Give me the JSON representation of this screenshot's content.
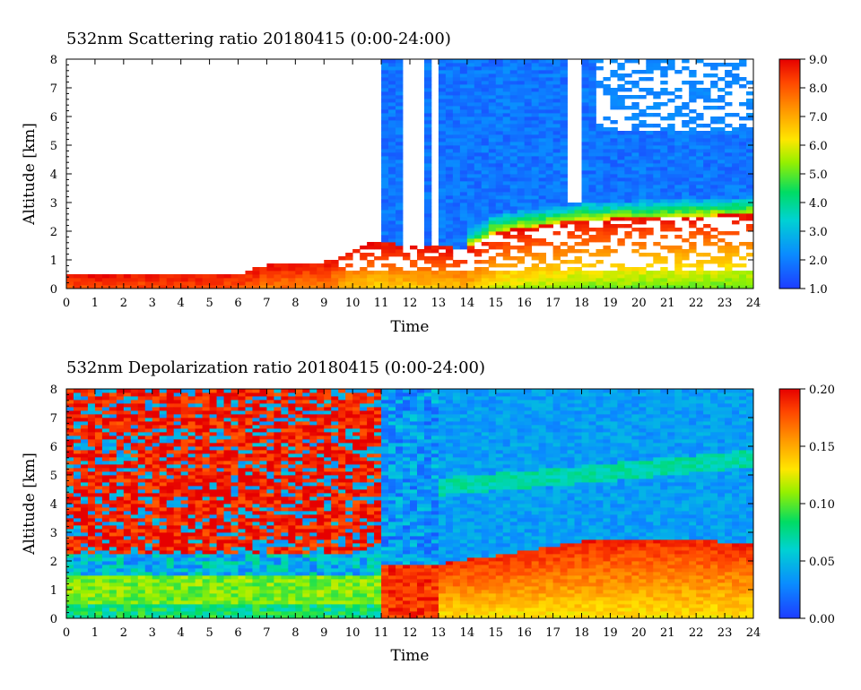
{
  "chart_data": [
    {
      "type": "heatmap",
      "title": "532nm Scattering ratio  20180415 (0:00-24:00)",
      "xlabel": "Time",
      "ylabel": "Altitude [km]",
      "xlim": [
        0,
        24
      ],
      "ylim": [
        0,
        8
      ],
      "x_ticks": [
        "0",
        "1",
        "2",
        "3",
        "4",
        "5",
        "6",
        "7",
        "8",
        "9",
        "10",
        "11",
        "12",
        "13",
        "14",
        "15",
        "16",
        "17",
        "18",
        "19",
        "20",
        "21",
        "22",
        "23",
        "24"
      ],
      "y_ticks": [
        "0",
        "1",
        "2",
        "3",
        "4",
        "5",
        "6",
        "7",
        "8"
      ],
      "colorbar": {
        "range": [
          1.0,
          9.0
        ],
        "ticks": [
          "1.0",
          "2.0",
          "3.0",
          "4.0",
          "5.0",
          "6.0",
          "7.0",
          "8.0",
          "9.0"
        ]
      },
      "features": {
        "no_data_before_hour": 11,
        "boundary_layer_top_km_by_hour": [
          [
            0,
            0.45
          ],
          [
            3,
            0.5
          ],
          [
            6,
            0.5
          ],
          [
            7,
            0.85
          ],
          [
            9,
            0.9
          ],
          [
            10,
            1.5
          ],
          [
            11,
            1.6
          ],
          [
            14,
            1.4
          ],
          [
            15,
            2.0
          ],
          [
            18,
            2.4
          ],
          [
            21,
            2.5
          ],
          [
            24,
            2.6
          ]
        ],
        "cloud_layer_km": [
          0.6,
          1.6
        ],
        "cloud_layer_hours": [
          9,
          24
        ]
      }
    },
    {
      "type": "heatmap",
      "title": "532nm Depolarization ratio  20180415 (0:00-24:00)",
      "xlabel": "Time",
      "ylabel": "Altitude [km]",
      "xlim": [
        0,
        24
      ],
      "ylim": [
        0,
        8
      ],
      "x_ticks": [
        "0",
        "1",
        "2",
        "3",
        "4",
        "5",
        "6",
        "7",
        "8",
        "9",
        "10",
        "11",
        "12",
        "13",
        "14",
        "15",
        "16",
        "17",
        "18",
        "19",
        "20",
        "21",
        "22",
        "23",
        "24"
      ],
      "y_ticks": [
        "0",
        "1",
        "2",
        "3",
        "4",
        "5",
        "6",
        "7",
        "8"
      ],
      "colorbar": {
        "range": [
          0.0,
          0.2
        ],
        "ticks": [
          "0.00",
          "0.05",
          "0.10",
          "0.15",
          "0.20"
        ]
      },
      "features": {
        "noisy_high_depol_before_hour": 11,
        "dust_layer_top_km_by_hour": [
          [
            13,
            1.9
          ],
          [
            15,
            2.2
          ],
          [
            18,
            2.7
          ],
          [
            21,
            2.8
          ],
          [
            24,
            2.6
          ]
        ],
        "elevated_layer_km_by_hour": [
          [
            13,
            4.6
          ],
          [
            18,
            5.0
          ],
          [
            24,
            5.6
          ]
        ]
      }
    }
  ]
}
